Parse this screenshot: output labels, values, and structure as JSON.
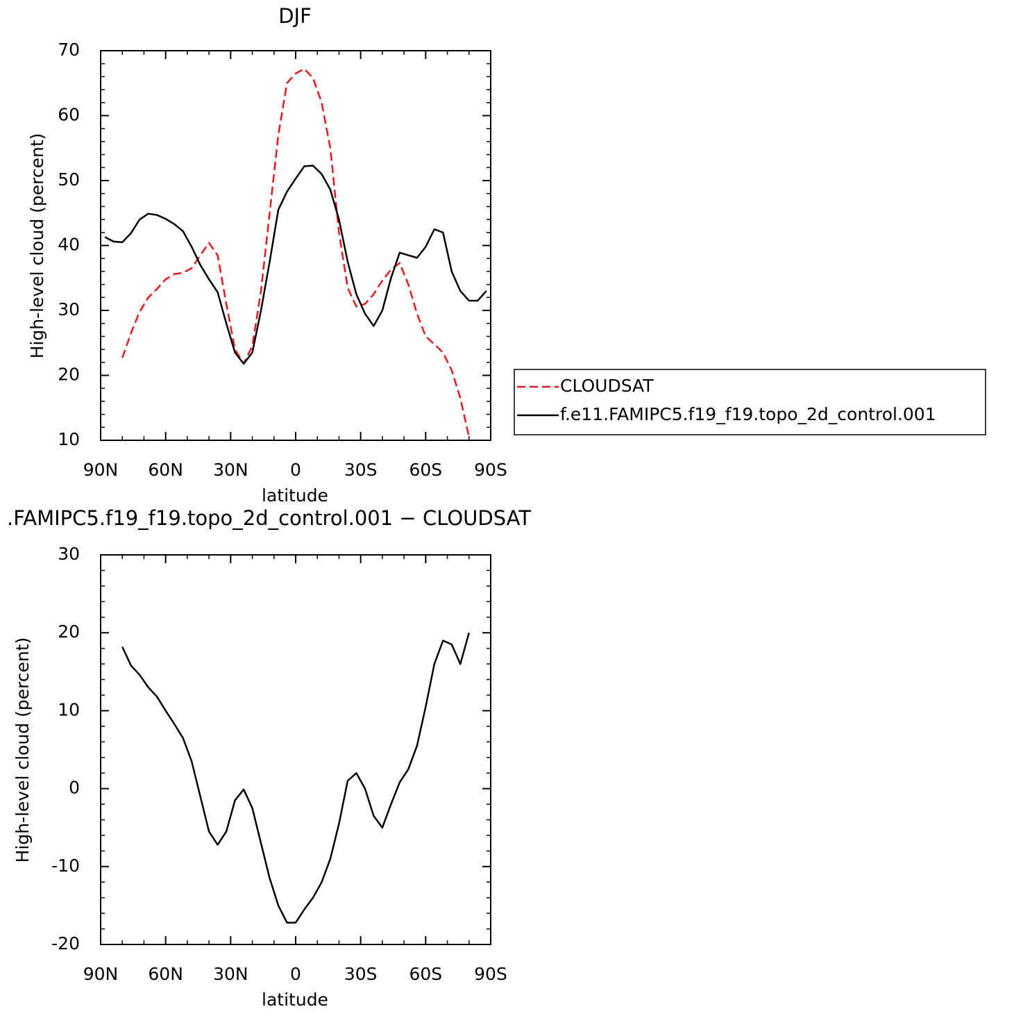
{
  "chart_data": [
    {
      "type": "line",
      "title": "DJF",
      "xlabel": "latitude",
      "ylabel": "High-level cloud (percent)",
      "xlim": [
        90,
        -90
      ],
      "xticks": [
        {
          "value": 90,
          "label": "90N"
        },
        {
          "value": 60,
          "label": "60N"
        },
        {
          "value": 30,
          "label": "30N"
        },
        0,
        {
          "value": -30,
          "label": "30S"
        },
        {
          "value": -60,
          "label": "60S"
        },
        {
          "value": -90,
          "label": "90S"
        }
      ],
      "ylim": [
        10,
        70
      ],
      "yticks": [
        10,
        20,
        30,
        40,
        50,
        60,
        70
      ],
      "x": [
        88,
        84,
        80,
        76,
        72,
        68,
        64,
        60,
        56,
        52,
        48,
        44,
        40,
        36,
        32,
        28,
        24,
        20,
        16,
        12,
        8,
        4,
        0,
        -4,
        -8,
        -12,
        -16,
        -20,
        -24,
        -28,
        -32,
        -36,
        -40,
        -44,
        -48,
        -52,
        -56,
        -60,
        -64,
        -68,
        -72,
        -76,
        -80,
        -84,
        -88
      ],
      "series": [
        {
          "name": "CLOUDSAT",
          "color": "#e8161b",
          "dashed": true,
          "values": [
            null,
            null,
            22.7,
            26.5,
            29.8,
            32,
            33.3,
            34.8,
            35.6,
            35.8,
            36.5,
            38.5,
            40.4,
            38.5,
            31,
            24,
            21.8,
            24.5,
            33,
            45,
            57,
            65,
            66.5,
            67.2,
            65.8,
            62,
            55,
            42,
            33.5,
            30.6,
            31,
            32.5,
            34.6,
            36.3,
            37.3,
            34,
            29.5,
            26,
            24.8,
            23.5,
            20.8,
            16.5,
            10.5,
            null,
            null
          ]
        },
        {
          "name": "f.e11.FAMIPC5.f19_f19.topo_2d_control.001",
          "color": "#000000",
          "dashed": false,
          "values": [
            41.3,
            40.6,
            40.5,
            41.9,
            44.0,
            44.9,
            44.7,
            44.1,
            43.3,
            42.2,
            39.8,
            37.0,
            34.8,
            32.8,
            28.0,
            23.5,
            21.8,
            23.5,
            30,
            37.5,
            45.5,
            48.3,
            50.3,
            52.2,
            52.3,
            51,
            48.6,
            44,
            37.5,
            32.5,
            29.5,
            27.6,
            30,
            35,
            38.9,
            38.5,
            38.1,
            39.8,
            42.5,
            42.0,
            36,
            33,
            31.5,
            31.5,
            33
          ]
        }
      ]
    },
    {
      "type": "line",
      "title": ".FAMIPC5.f19_f19.topo_2d_control.001 − CLOUDSAT",
      "xlabel": "latitude",
      "ylabel": "High-level cloud (percent)",
      "xlim": [
        90,
        -90
      ],
      "xticks": [
        {
          "value": 90,
          "label": "90N"
        },
        {
          "value": 60,
          "label": "60N"
        },
        {
          "value": 30,
          "label": "30N"
        },
        0,
        {
          "value": -30,
          "label": "30S"
        },
        {
          "value": -60,
          "label": "60S"
        },
        {
          "value": -90,
          "label": "90S"
        }
      ],
      "ylim": [
        -20,
        30
      ],
      "yticks": [
        -20,
        -10,
        0,
        10,
        20,
        30
      ],
      "x": [
        80,
        76,
        72,
        68,
        64,
        60,
        56,
        52,
        48,
        44,
        40,
        36,
        32,
        28,
        24,
        20,
        16,
        12,
        8,
        4,
        0,
        -4,
        -8,
        -12,
        -16,
        -20,
        -24,
        -28,
        -32,
        -36,
        -40,
        -44,
        -48,
        -52,
        -56,
        -60,
        -64,
        -68,
        -72,
        -76,
        -80
      ],
      "color": "#000000",
      "values": [
        18.2,
        15.8,
        14.6,
        13,
        11.8,
        10,
        8.3,
        6.5,
        3.5,
        -1,
        -5.5,
        -7.2,
        -5.5,
        -1.5,
        -0.1,
        -2.5,
        -7,
        -11.5,
        -15,
        -17.2,
        -17.2,
        -15.5,
        -14,
        -12,
        -9,
        -4.5,
        1,
        2,
        0,
        -3.5,
        -5,
        -2,
        0.8,
        2.5,
        5.5,
        10.5,
        16,
        19,
        18.5,
        16,
        20
      ]
    }
  ]
}
